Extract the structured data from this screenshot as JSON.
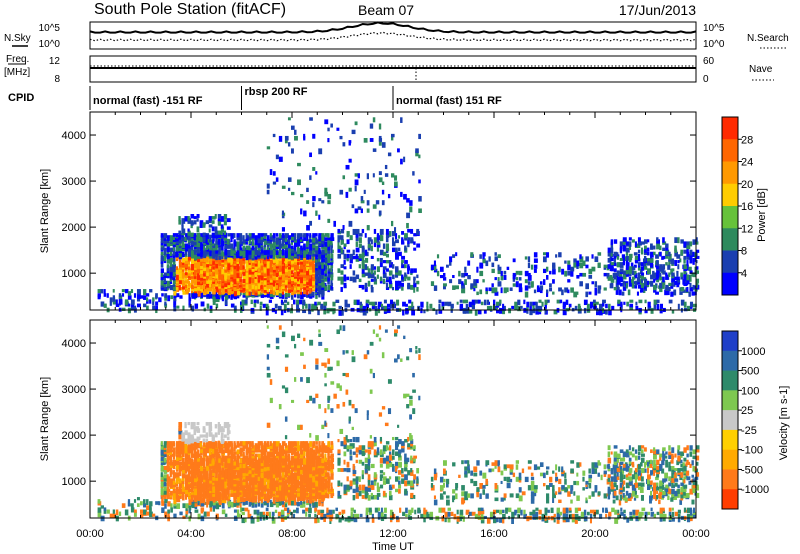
{
  "header": {
    "station": "South Pole Station (fitACF)",
    "beam": "Beam 07",
    "date": "17/Jun/2013"
  },
  "top_panel": {
    "nsky_label": "N.Sky",
    "nsearch_label": "N.Search",
    "freq_label_1": "Freq.",
    "freq_label_2": "[MHz]",
    "nave_label": "Nave",
    "cpid_label": "CPID",
    "left_ticks_top": [
      "10^5",
      "10^0"
    ],
    "right_ticks_top": [
      "10^5",
      "10^0"
    ],
    "left_ticks_freq": [
      "12",
      "8"
    ],
    "right_ticks_nave": [
      "60",
      "0"
    ]
  },
  "cpid_segments": [
    {
      "label": "normal (fast) -151 RF",
      "start_hour": 0,
      "end_hour": 6
    },
    {
      "label": "rbsp 200 RF",
      "start_hour": 6,
      "end_hour": 12
    },
    {
      "label": "normal (fast) 151 RF",
      "start_hour": 12,
      "end_hour": 24
    }
  ],
  "colors": {
    "power": [
      "#0000ff",
      "#1a3fb0",
      "#2e8a5e",
      "#66c23a",
      "#ffcc00",
      "#ff9900",
      "#ff6600",
      "#ff2a00"
    ],
    "velocity": [
      "#1f3fc8",
      "#2d6aa8",
      "#2e8a6a",
      "#7ec850",
      "#c8c8c8",
      "#ffd000",
      "#ffaa00",
      "#ff7a1a",
      "#ff3d00"
    ]
  },
  "chart_data": [
    {
      "type": "heatmap",
      "name": "power",
      "xlabel": "",
      "ylabel": "Slant Range [km]",
      "colorbar_label": "Power [dB]",
      "xlim_hours": [
        0,
        24
      ],
      "ylim_km": [
        200,
        4500
      ],
      "y_ticks": [
        "1000",
        "2000",
        "3000",
        "4000"
      ],
      "colorbar_ticks": [
        "4",
        "8",
        "12",
        "16",
        "20",
        "24",
        "28"
      ]
    },
    {
      "type": "heatmap",
      "name": "velocity",
      "xlabel": "Time UT",
      "ylabel": "Slant Range [km]",
      "colorbar_label": "Velocity [m s-1]",
      "xlim_hours": [
        0,
        24
      ],
      "ylim_km": [
        200,
        4500
      ],
      "y_ticks": [
        "1000",
        "2000",
        "3000",
        "4000"
      ],
      "colorbar_ticks": [
        "1000",
        "500",
        "100",
        "25",
        "-25",
        "-100",
        "-500",
        "-1000"
      ],
      "x_ticks": [
        "00:00",
        "04:00",
        "08:00",
        "12:00",
        "16:00",
        "20:00",
        "00:00"
      ]
    }
  ]
}
